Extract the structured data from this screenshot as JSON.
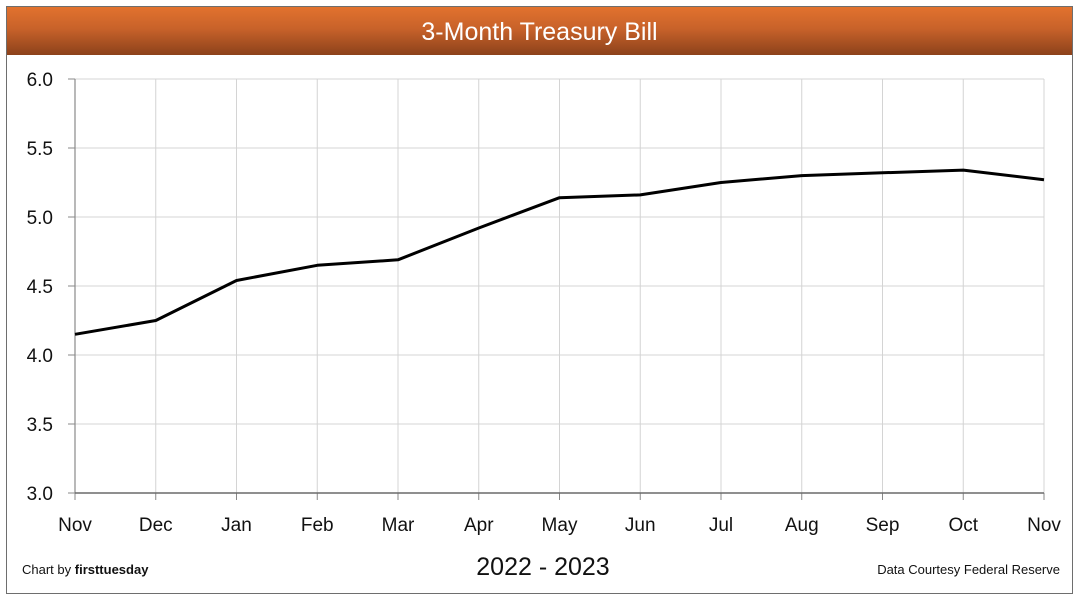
{
  "chart_data": {
    "type": "line",
    "title": "3-Month Treasury Bill",
    "xlabel": "2022 - 2023",
    "ylabel": "",
    "categories": [
      "Nov",
      "Dec",
      "Jan",
      "Feb",
      "Mar",
      "Apr",
      "May",
      "Jun",
      "Jul",
      "Aug",
      "Sep",
      "Oct",
      "Nov"
    ],
    "series": [
      {
        "name": "3-Month Treasury Bill",
        "color": "#000000",
        "values": [
          4.15,
          4.25,
          4.54,
          4.65,
          4.69,
          4.92,
          5.14,
          5.16,
          5.25,
          5.3,
          5.32,
          5.34,
          5.27
        ]
      }
    ],
    "ylim": [
      3.0,
      6.0
    ],
    "yticks": [
      "6.0",
      "5.5",
      "5.0",
      "4.5",
      "4.0",
      "3.5",
      "3.0"
    ],
    "grid": true,
    "legend": "none"
  },
  "header": {
    "title": "3-Month Treasury Bill",
    "color_top": "#e2722e",
    "color_bottom": "#8c421b"
  },
  "footer": {
    "credit_prefix": "Chart by ",
    "credit_brand": "firsttuesday",
    "source": "Data Courtesy Federal Reserve"
  }
}
